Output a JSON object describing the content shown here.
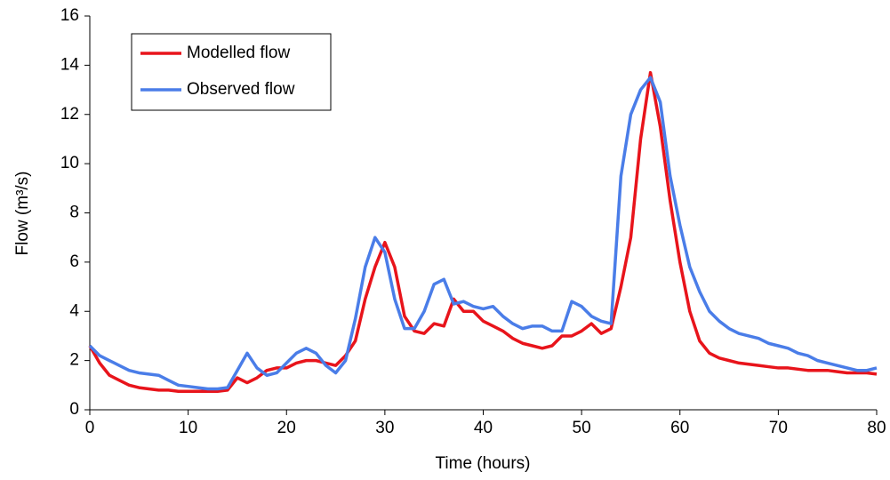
{
  "chart_data": {
    "type": "line",
    "xlabel": "Time (hours)",
    "ylabel": "Flow (m³/s)",
    "x": [
      0,
      1,
      2,
      3,
      4,
      5,
      6,
      7,
      8,
      9,
      10,
      11,
      12,
      13,
      14,
      15,
      16,
      17,
      18,
      19,
      20,
      21,
      22,
      23,
      24,
      25,
      26,
      27,
      28,
      29,
      30,
      31,
      32,
      33,
      34,
      35,
      36,
      37,
      38,
      39,
      40,
      41,
      42,
      43,
      44,
      45,
      46,
      47,
      48,
      49,
      50,
      51,
      52,
      53,
      54,
      55,
      56,
      57,
      58,
      59,
      60,
      61,
      62,
      63,
      64,
      65,
      66,
      67,
      68,
      69,
      70,
      71,
      72,
      73,
      74,
      75,
      76,
      77,
      78,
      79,
      80
    ],
    "series": [
      {
        "name": "Modelled flow",
        "color": "#e8141b",
        "values": [
          2.6,
          1.9,
          1.4,
          1.2,
          1.0,
          0.9,
          0.85,
          0.8,
          0.8,
          0.75,
          0.75,
          0.75,
          0.75,
          0.75,
          0.8,
          1.3,
          1.1,
          1.3,
          1.6,
          1.7,
          1.7,
          1.9,
          2.0,
          2.0,
          1.9,
          1.8,
          2.2,
          2.8,
          4.5,
          5.8,
          6.8,
          5.8,
          3.8,
          3.2,
          3.1,
          3.5,
          3.4,
          4.5,
          4.0,
          4.0,
          3.6,
          3.4,
          3.2,
          2.9,
          2.7,
          2.6,
          2.5,
          2.6,
          3.0,
          3.0,
          3.2,
          3.5,
          3.1,
          3.3,
          5.0,
          7.0,
          11,
          13.7,
          11.5,
          8.5,
          6.0,
          4.0,
          2.8,
          2.3,
          2.1,
          2.0,
          1.9,
          1.85,
          1.8,
          1.75,
          1.7,
          1.7,
          1.65,
          1.6,
          1.6,
          1.6,
          1.55,
          1.5,
          1.5,
          1.5,
          1.45
        ]
      },
      {
        "name": "Observed flow",
        "color": "#4a7de8",
        "values": [
          2.6,
          2.2,
          2.0,
          1.8,
          1.6,
          1.5,
          1.45,
          1.4,
          1.2,
          1.0,
          0.95,
          0.9,
          0.85,
          0.85,
          0.9,
          1.6,
          2.3,
          1.7,
          1.4,
          1.5,
          1.9,
          2.3,
          2.5,
          2.3,
          1.8,
          1.5,
          2.0,
          3.7,
          5.8,
          7.0,
          6.4,
          4.5,
          3.3,
          3.3,
          4.0,
          5.1,
          5.3,
          4.3,
          4.4,
          4.2,
          4.1,
          4.2,
          3.8,
          3.5,
          3.3,
          3.4,
          3.4,
          3.2,
          3.2,
          4.4,
          4.2,
          3.8,
          3.6,
          3.5,
          9.5,
          12,
          13,
          13.5,
          12.5,
          9.5,
          7.5,
          5.8,
          4.8,
          4.0,
          3.6,
          3.3,
          3.1,
          3.0,
          2.9,
          2.7,
          2.6,
          2.5,
          2.3,
          2.2,
          2.0,
          1.9,
          1.8,
          1.7,
          1.6,
          1.6,
          1.7
        ]
      }
    ],
    "xlim": [
      0,
      80
    ],
    "xticks": [
      0,
      10,
      20,
      30,
      40,
      50,
      60,
      70,
      80
    ],
    "ylim": [
      0,
      16
    ],
    "yticks": [
      0,
      2,
      4,
      6,
      8,
      10,
      12,
      14,
      16
    ],
    "legend": "upper left"
  }
}
